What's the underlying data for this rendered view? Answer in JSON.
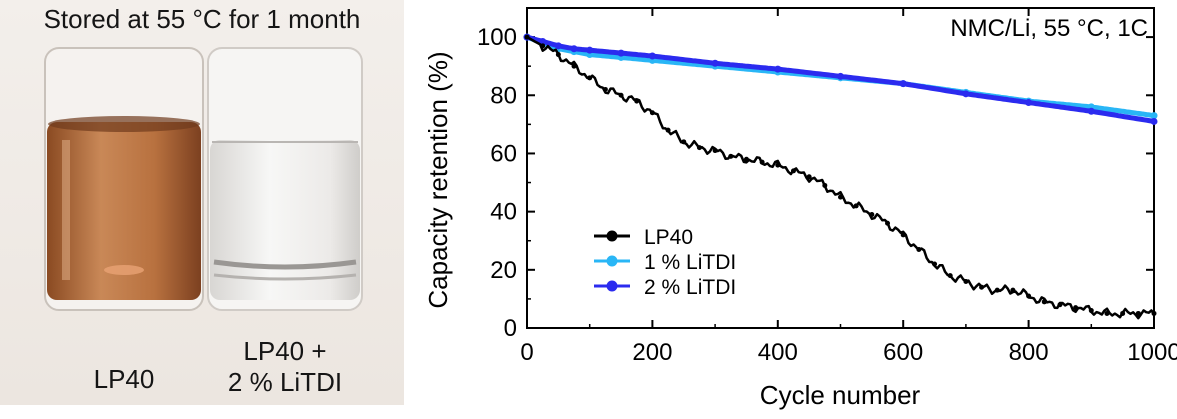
{
  "photo": {
    "caption": "Stored at 55 °C for 1 month",
    "vial_left_label": "LP40",
    "vial_right_label_line1": "LP40 +",
    "vial_right_label_line2": "2 % LiTDI"
  },
  "chart_data": {
    "type": "line",
    "annotation": "NMC/Li, 55 °C, 1C",
    "xlabel": "Cycle number",
    "ylabel": "Capacity retention (%)",
    "xlim": [
      0,
      1000
    ],
    "ylim": [
      0,
      110
    ],
    "xticks": [
      0,
      200,
      400,
      600,
      800,
      1000
    ],
    "yticks": [
      0,
      20,
      40,
      60,
      80,
      100
    ],
    "grid": false,
    "legend_position": "bottom-left",
    "series": [
      {
        "name": "LP40",
        "color": "#000000",
        "x": [
          0,
          25,
          50,
          75,
          100,
          125,
          150,
          175,
          200,
          225,
          250,
          275,
          300,
          325,
          350,
          375,
          400,
          425,
          450,
          475,
          500,
          525,
          550,
          575,
          600,
          625,
          650,
          675,
          700,
          725,
          750,
          775,
          800,
          825,
          850,
          875,
          900,
          925,
          950,
          975,
          1000
        ],
        "y": [
          100,
          97,
          94,
          90,
          86,
          82,
          80,
          78,
          74,
          68,
          64,
          62,
          61,
          59,
          58,
          57,
          56,
          54,
          52,
          49,
          45,
          42,
          39,
          36,
          32,
          27,
          22,
          18,
          16,
          14,
          13,
          13,
          11,
          9,
          8,
          7,
          6,
          5,
          5,
          5,
          5
        ]
      },
      {
        "name": "1 % LiTDI",
        "color": "#29b6f6",
        "x": [
          0,
          25,
          50,
          75,
          100,
          150,
          200,
          300,
          400,
          500,
          600,
          700,
          800,
          900,
          1000
        ],
        "y": [
          100,
          98,
          96,
          95,
          94,
          93,
          92,
          90,
          88,
          86,
          84,
          81,
          78,
          76,
          73
        ]
      },
      {
        "name": "2 % LiTDI",
        "color": "#2b2bef",
        "x": [
          0,
          25,
          50,
          75,
          100,
          150,
          200,
          300,
          400,
          500,
          600,
          700,
          800,
          900,
          1000
        ],
        "y": [
          100,
          98.5,
          97,
          96,
          95.5,
          94.5,
          93.5,
          91,
          89,
          86.5,
          84,
          80.5,
          77.5,
          74.5,
          71
        ]
      }
    ]
  }
}
